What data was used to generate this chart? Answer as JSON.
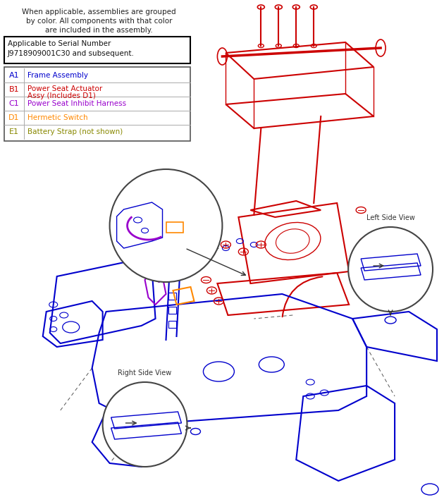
{
  "background_color": "#ffffff",
  "fig_width": 6.3,
  "fig_height": 7.12,
  "top_note_lines": [
    "When applicable, assemblies are grouped",
    "by color. All components with that color",
    "are included in the assembly."
  ],
  "serial_box_lines": [
    "Applicable to Serial Number",
    "J9718909001C30 and subsequent."
  ],
  "legend_rows": [
    {
      "code": "A1",
      "code_color": "#0000cc",
      "desc": "Frame Assembly",
      "desc_color": "#0000cc"
    },
    {
      "code": "B1",
      "code_color": "#cc0000",
      "desc": "Power Seat Actuator\nAssy (Includes D1)",
      "desc_color": "#cc0000"
    },
    {
      "code": "C1",
      "code_color": "#9900cc",
      "desc": "Power Seat Inhibit Harness",
      "desc_color": "#9900cc"
    },
    {
      "code": "D1",
      "code_color": "#ff8800",
      "desc": "Hermetic Switch",
      "desc_color": "#ff8800"
    },
    {
      "code": "E1",
      "code_color": "#888800",
      "desc": "Battery Strap (not shown)",
      "desc_color": "#888800"
    }
  ],
  "left_side_view_label": "Left Side View",
  "right_side_view_label": "Right Side View",
  "main_drawing_color": "#0000cc",
  "red_parts_color": "#cc0000"
}
